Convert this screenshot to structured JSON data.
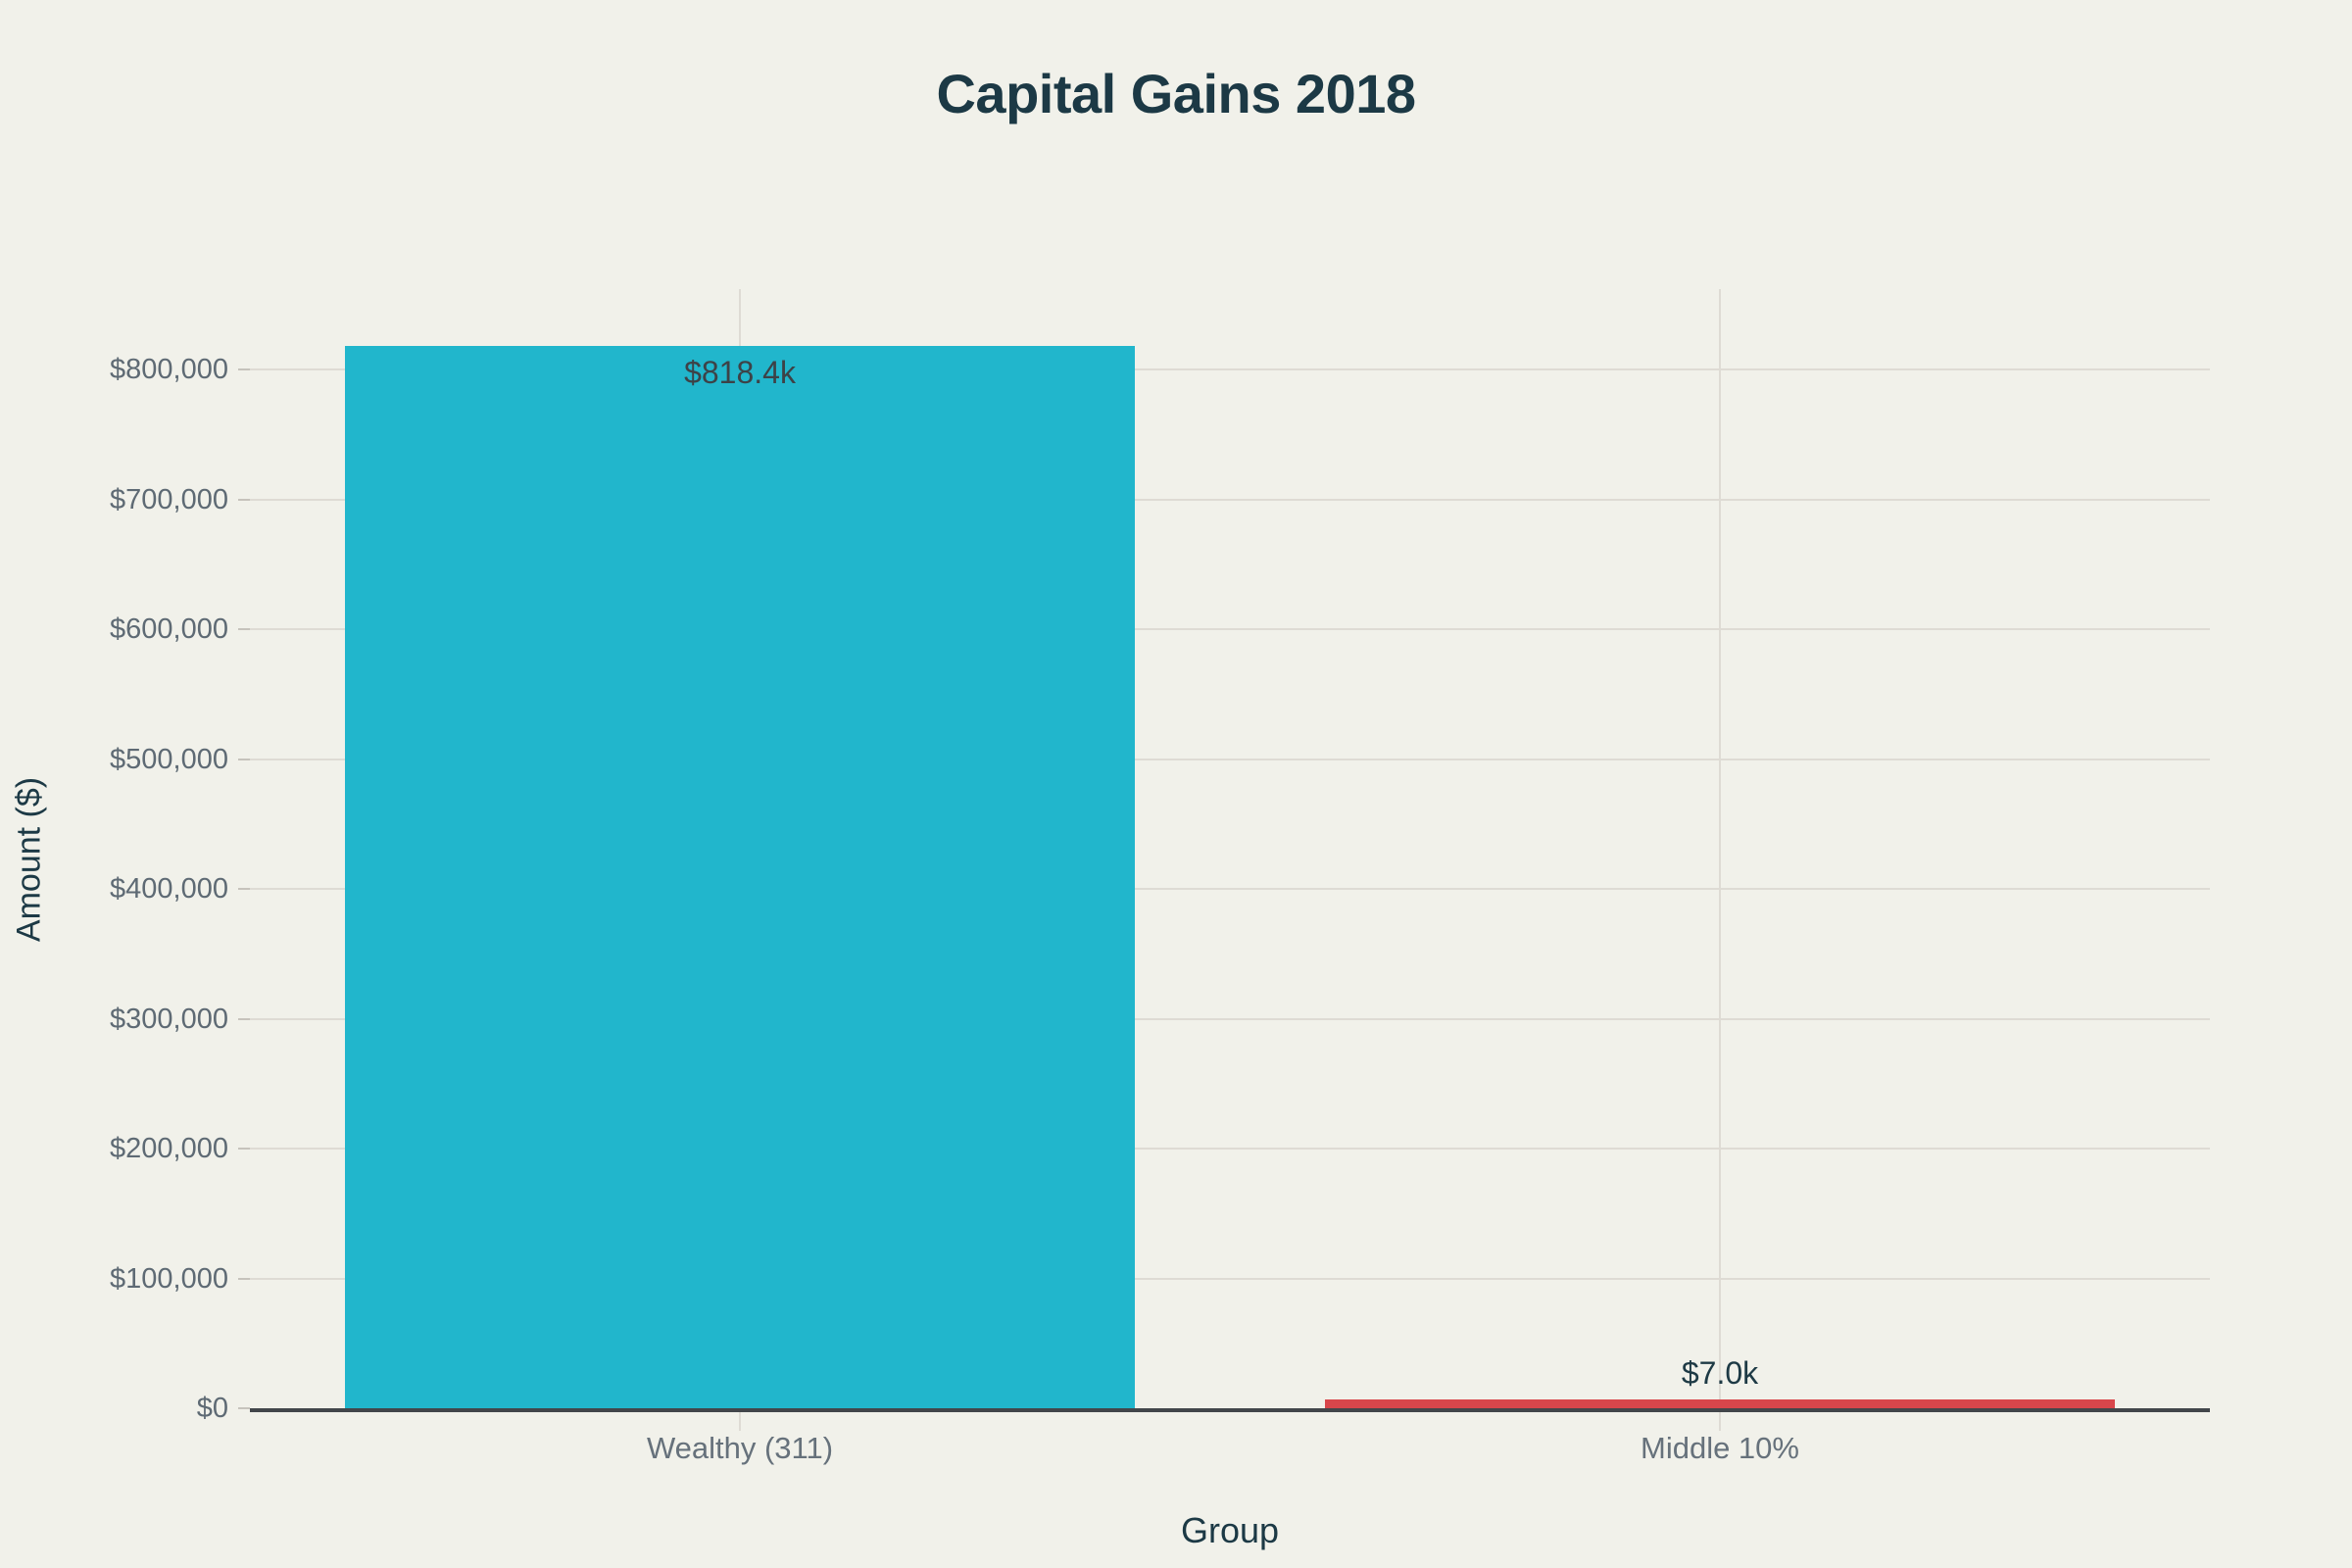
{
  "chart_data": {
    "type": "bar",
    "title": "Capital Gains 2018",
    "xlabel": "Group",
    "ylabel": "Amount ($)",
    "categories": [
      "Wealthy (311)",
      "Middle 10%"
    ],
    "values": [
      818400,
      7000
    ],
    "value_labels": [
      "$818.4k",
      "$7.0k"
    ],
    "bar_colors": [
      "#21b6cc",
      "#d8464b"
    ],
    "y_ticks": {
      "values": [
        0,
        100000,
        200000,
        300000,
        400000,
        500000,
        600000,
        700000,
        800000
      ],
      "labels": [
        "$0",
        "$100,000",
        "$200,000",
        "$300,000",
        "$400,000",
        "$500,000",
        "$600,000",
        "$700,000",
        "$800,000"
      ]
    },
    "ylim": [
      0,
      860000
    ],
    "grid": "on",
    "legend": "none",
    "style": {
      "background": "#f1f1ea",
      "title_color": "#1c3945",
      "axis_title_color": "#1c3945",
      "tick_label_color": "#5e6a74",
      "category_label_color": "#66717b",
      "gridline_color": "#dedbd4",
      "tick_mark_color": "#c6c3bc",
      "axis_line_color": "#42464a",
      "value_label_colors": [
        "#3d4247",
        "#1e3a45"
      ]
    }
  }
}
